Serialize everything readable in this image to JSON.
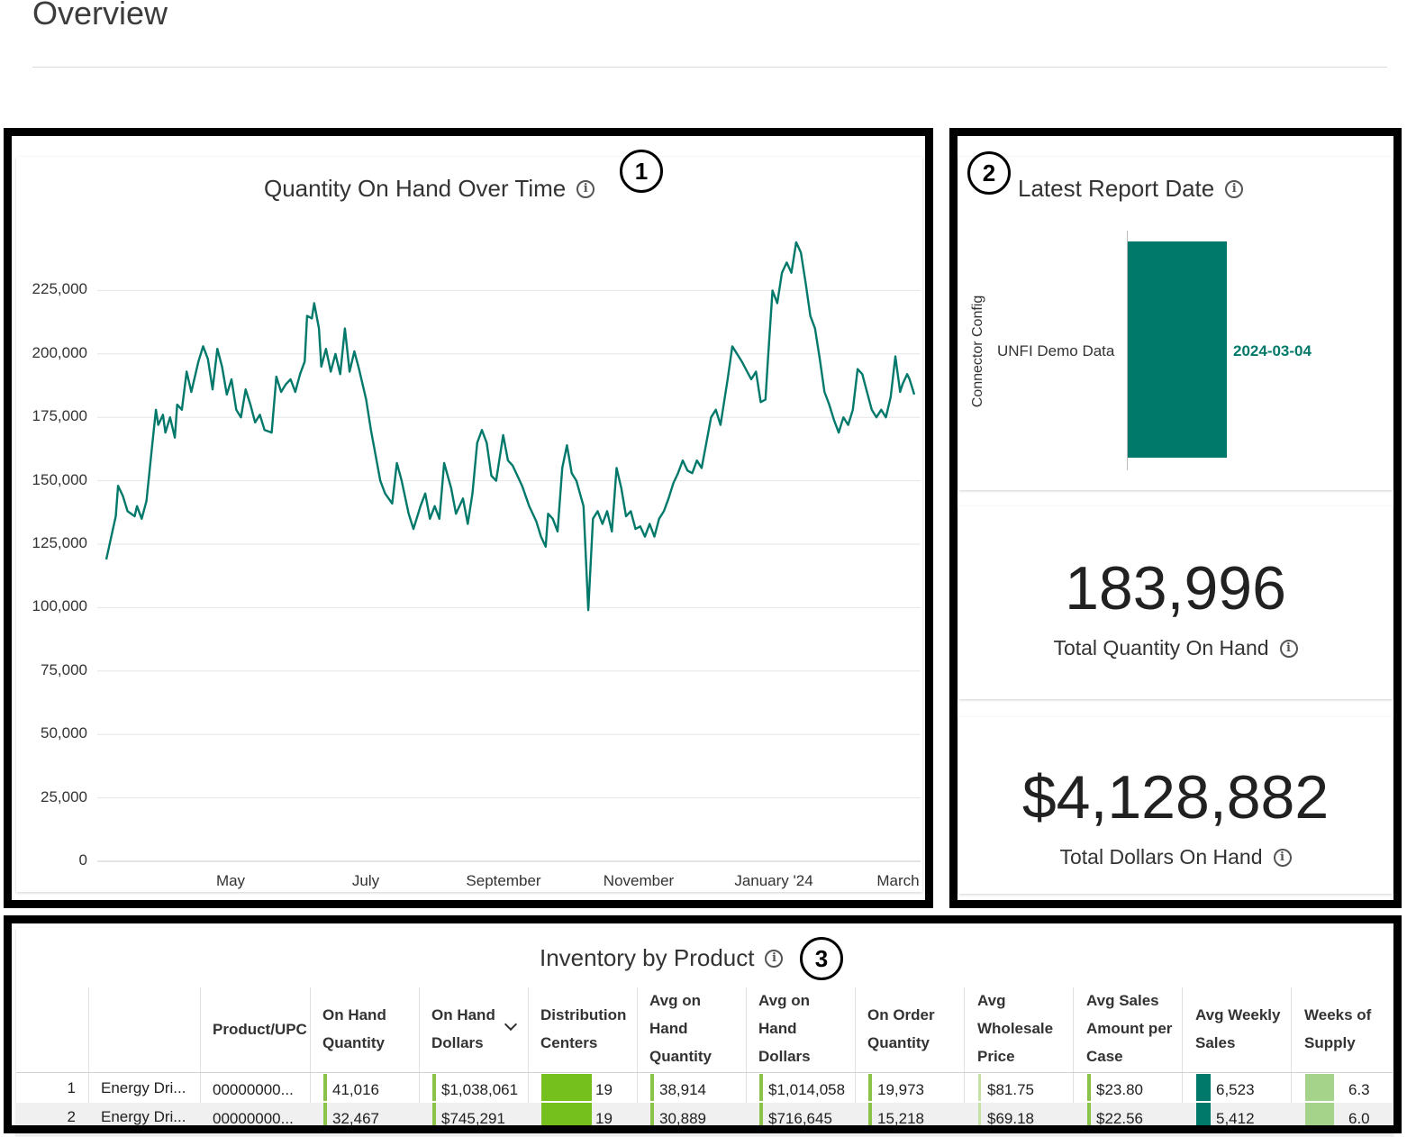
{
  "page": {
    "title": "Overview"
  },
  "annotations": {
    "n1": "1",
    "n2": "2",
    "n3": "3"
  },
  "colors": {
    "teal": "#00796b",
    "bar_green_light": "#8bc34a",
    "bar_green_dark": "#76c01d",
    "bar_teal": "#00796b",
    "bar_pale_green": "#a5d38a"
  },
  "line_card": {
    "title": "Quantity On Hand Over Time",
    "info_icon": "info-icon",
    "chart_data": {
      "type": "line",
      "title": "Quantity On Hand Over Time",
      "xlabel": "",
      "ylabel": "",
      "ylim": [
        0,
        250000
      ],
      "y_ticks": [
        "225,000",
        "200,000",
        "175,000",
        "150,000",
        "125,000",
        "100,000",
        "75,000",
        "50,000",
        "25,000",
        "0"
      ],
      "x_ticks": [
        "May",
        "July",
        "September",
        "November",
        "January '24",
        "March"
      ],
      "x_range": [
        "2023-03-28",
        "2024-03-04"
      ],
      "series": [
        {
          "color": "#00796b",
          "points": [
            [
              "2023-03-28",
              119000
            ],
            [
              "2023-04-01",
              136000
            ],
            [
              "2023-04-02",
              148000
            ],
            [
              "2023-04-04",
              144000
            ],
            [
              "2023-04-06",
              138000
            ],
            [
              "2023-04-09",
              136000
            ],
            [
              "2023-04-10",
              140000
            ],
            [
              "2023-04-12",
              135000
            ],
            [
              "2023-04-14",
              142000
            ],
            [
              "2023-04-16",
              160000
            ],
            [
              "2023-04-18",
              178000
            ],
            [
              "2023-04-19",
              172000
            ],
            [
              "2023-04-21",
              176000
            ],
            [
              "2023-04-22",
              169000
            ],
            [
              "2023-04-24",
              175000
            ],
            [
              "2023-04-26",
              167000
            ],
            [
              "2023-04-27",
              180000
            ],
            [
              "2023-04-29",
              178000
            ],
            [
              "2023-05-01",
              193000
            ],
            [
              "2023-05-03",
              185000
            ],
            [
              "2023-05-06",
              197000
            ],
            [
              "2023-05-08",
              203000
            ],
            [
              "2023-05-10",
              198000
            ],
            [
              "2023-05-12",
              186000
            ],
            [
              "2023-05-14",
              202000
            ],
            [
              "2023-05-16",
              195000
            ],
            [
              "2023-05-18",
              184000
            ],
            [
              "2023-05-20",
              190000
            ],
            [
              "2023-05-22",
              178000
            ],
            [
              "2023-05-24",
              175000
            ],
            [
              "2023-05-26",
              186000
            ],
            [
              "2023-05-28",
              180000
            ],
            [
              "2023-05-30",
              173000
            ],
            [
              "2023-06-01",
              176000
            ],
            [
              "2023-06-03",
              170000
            ],
            [
              "2023-06-06",
              169000
            ],
            [
              "2023-06-08",
              191000
            ],
            [
              "2023-06-10",
              185000
            ],
            [
              "2023-06-12",
              188000
            ],
            [
              "2023-06-14",
              190000
            ],
            [
              "2023-06-16",
              185000
            ],
            [
              "2023-06-18",
              192000
            ],
            [
              "2023-06-20",
              197000
            ],
            [
              "2023-06-21",
              215000
            ],
            [
              "2023-06-23",
              214000
            ],
            [
              "2023-06-24",
              220000
            ],
            [
              "2023-06-26",
              210000
            ],
            [
              "2023-06-27",
              195000
            ],
            [
              "2023-06-29",
              202000
            ],
            [
              "2023-07-01",
              193000
            ],
            [
              "2023-07-03",
              200000
            ],
            [
              "2023-07-05",
              192000
            ],
            [
              "2023-07-07",
              210000
            ],
            [
              "2023-07-09",
              193000
            ],
            [
              "2023-07-11",
              201000
            ],
            [
              "2023-07-13",
              194000
            ],
            [
              "2023-07-16",
              182000
            ],
            [
              "2023-07-18",
              170000
            ],
            [
              "2023-07-20",
              160000
            ],
            [
              "2023-07-22",
              150000
            ],
            [
              "2023-07-24",
              145000
            ],
            [
              "2023-07-27",
              141000
            ],
            [
              "2023-07-29",
              157000
            ],
            [
              "2023-07-31",
              150000
            ],
            [
              "2023-08-03",
              137000
            ],
            [
              "2023-08-05",
              131000
            ],
            [
              "2023-08-08",
              140000
            ],
            [
              "2023-08-10",
              145000
            ],
            [
              "2023-08-12",
              135000
            ],
            [
              "2023-08-14",
              140000
            ],
            [
              "2023-08-16",
              135000
            ],
            [
              "2023-08-18",
              157000
            ],
            [
              "2023-08-21",
              147000
            ],
            [
              "2023-08-23",
              137000
            ],
            [
              "2023-08-26",
              143000
            ],
            [
              "2023-08-28",
              133000
            ],
            [
              "2023-08-30",
              145000
            ],
            [
              "2023-09-01",
              165000
            ],
            [
              "2023-09-03",
              170000
            ],
            [
              "2023-09-05",
              165000
            ],
            [
              "2023-09-07",
              152000
            ],
            [
              "2023-09-09",
              150000
            ],
            [
              "2023-09-12",
              168000
            ],
            [
              "2023-09-14",
              158000
            ],
            [
              "2023-09-16",
              156000
            ],
            [
              "2023-09-18",
              152000
            ],
            [
              "2023-09-20",
              148000
            ],
            [
              "2023-09-23",
              140000
            ],
            [
              "2023-09-26",
              134000
            ],
            [
              "2023-09-28",
              128000
            ],
            [
              "2023-09-30",
              124000
            ],
            [
              "2023-10-01",
              137000
            ],
            [
              "2023-10-03",
              135000
            ],
            [
              "2023-10-05",
              130000
            ],
            [
              "2023-10-07",
              155000
            ],
            [
              "2023-10-09",
              164000
            ],
            [
              "2023-10-11",
              153000
            ],
            [
              "2023-10-13",
              150000
            ],
            [
              "2023-10-16",
              140000
            ],
            [
              "2023-10-18",
              99000
            ],
            [
              "2023-10-20",
              135000
            ],
            [
              "2023-10-22",
              138000
            ],
            [
              "2023-10-24",
              133000
            ],
            [
              "2023-10-26",
              138000
            ],
            [
              "2023-10-28",
              130000
            ],
            [
              "2023-10-30",
              155000
            ],
            [
              "2023-11-01",
              147000
            ],
            [
              "2023-11-03",
              136000
            ],
            [
              "2023-11-05",
              138000
            ],
            [
              "2023-11-07",
              131000
            ],
            [
              "2023-11-09",
              132000
            ],
            [
              "2023-11-11",
              128000
            ],
            [
              "2023-11-13",
              133000
            ],
            [
              "2023-11-15",
              128000
            ],
            [
              "2023-11-17",
              135000
            ],
            [
              "2023-11-19",
              138000
            ],
            [
              "2023-11-21",
              143000
            ],
            [
              "2023-11-23",
              149000
            ],
            [
              "2023-11-25",
              153000
            ],
            [
              "2023-11-27",
              158000
            ],
            [
              "2023-11-29",
              154000
            ],
            [
              "2023-12-01",
              153000
            ],
            [
              "2023-12-03",
              158000
            ],
            [
              "2023-12-05",
              155000
            ],
            [
              "2023-12-07",
              165000
            ],
            [
              "2023-12-09",
              175000
            ],
            [
              "2023-12-11",
              178000
            ],
            [
              "2023-12-13",
              172000
            ],
            [
              "2023-12-16",
              190000
            ],
            [
              "2023-12-18",
              203000
            ],
            [
              "2023-12-22",
              197000
            ],
            [
              "2023-12-26",
              190000
            ],
            [
              "2023-12-28",
              193000
            ],
            [
              "2023-12-30",
              181000
            ],
            [
              "2024-01-01",
              182000
            ],
            [
              "2024-01-02",
              197000
            ],
            [
              "2024-01-04",
              225000
            ],
            [
              "2024-01-06",
              220000
            ],
            [
              "2024-01-08",
              232000
            ],
            [
              "2024-01-10",
              236000
            ],
            [
              "2024-01-12",
              232000
            ],
            [
              "2024-01-14",
              244000
            ],
            [
              "2024-01-16",
              240000
            ],
            [
              "2024-01-18",
              228000
            ],
            [
              "2024-01-20",
              215000
            ],
            [
              "2024-01-22",
              210000
            ],
            [
              "2024-01-24",
              198000
            ],
            [
              "2024-01-26",
              185000
            ],
            [
              "2024-01-28",
              180000
            ],
            [
              "2024-01-30",
              174000
            ],
            [
              "2024-02-01",
              169000
            ],
            [
              "2024-02-03",
              175000
            ],
            [
              "2024-02-05",
              172000
            ],
            [
              "2024-02-07",
              178000
            ],
            [
              "2024-02-09",
              194000
            ],
            [
              "2024-02-11",
              192000
            ],
            [
              "2024-02-13",
              185000
            ],
            [
              "2024-02-15",
              178000
            ],
            [
              "2024-02-17",
              175000
            ],
            [
              "2024-02-19",
              178000
            ],
            [
              "2024-02-21",
              175000
            ],
            [
              "2024-02-23",
              183000
            ],
            [
              "2024-02-25",
              199000
            ],
            [
              "2024-02-27",
              185000
            ],
            [
              "2024-02-28",
              188000
            ],
            [
              "2024-03-01",
              192000
            ],
            [
              "2024-03-02",
              190000
            ],
            [
              "2024-03-04",
              184000
            ]
          ]
        }
      ]
    }
  },
  "report_date_card": {
    "title": "Latest Report Date",
    "info_icon": "info-icon",
    "chart_data": {
      "type": "bar",
      "orientation": "horizontal",
      "ylabel": "Connector Config",
      "categories": [
        "UNFI Demo Data"
      ],
      "values": [
        "2024-03-04"
      ],
      "data_labels": [
        "2024-03-04"
      ],
      "color": "#00796b"
    }
  },
  "kpi_quantity": {
    "value": "183,996",
    "label": "Total Quantity On Hand",
    "info_icon": "info-icon"
  },
  "kpi_dollars": {
    "value": "$4,128,882",
    "label": "Total Dollars On Hand",
    "info_icon": "info-icon"
  },
  "table": {
    "title": "Inventory by Product",
    "info_icon": "info-icon",
    "sort_icon": "chevron-down-icon",
    "columns": [
      {
        "key": "product",
        "label": ""
      },
      {
        "key": "upc",
        "label": "Product/UPC"
      },
      {
        "key": "on_hand_qty",
        "label": "On Hand Quantity"
      },
      {
        "key": "on_hand_dollars",
        "label": "On Hand Dollars"
      },
      {
        "key": "dc",
        "label": "Distribution Centers"
      },
      {
        "key": "avg_on_hand_qty",
        "label": "Avg on Hand Quantity"
      },
      {
        "key": "avg_on_hand_dollars",
        "label": "Avg on Hand Dollars"
      },
      {
        "key": "on_order_qty",
        "label": "On Order Quantity"
      },
      {
        "key": "avg_wholesale",
        "label": "Avg Wholesale Price"
      },
      {
        "key": "avg_sales_case",
        "label": "Avg Sales Amount per Case"
      },
      {
        "key": "avg_weekly_sales",
        "label": "Avg Weekly Sales"
      },
      {
        "key": "weeks_supply",
        "label": "Weeks of Supply"
      }
    ],
    "rows": [
      {
        "num": "1",
        "product": "Energy Dri...",
        "upc": "00000000...",
        "on_hand_qty": "41,016",
        "on_hand_dollars": "$1,038,061",
        "dc": "19",
        "avg_on_hand_qty": "38,914",
        "avg_on_hand_dollars": "$1,014,058",
        "on_order_qty": "19,973",
        "avg_wholesale": "$81.75",
        "avg_sales_case": "$23.80",
        "avg_weekly_sales": "6,523",
        "weeks_supply": "6.3"
      },
      {
        "num": "2",
        "product": "Energy Dri...",
        "upc": "00000000...",
        "on_hand_qty": "32,467",
        "on_hand_dollars": "$745,291",
        "dc": "19",
        "avg_on_hand_qty": "30,889",
        "avg_on_hand_dollars": "$716,645",
        "on_order_qty": "15,218",
        "avg_wholesale": "$69.18",
        "avg_sales_case": "$22.56",
        "avg_weekly_sales": "5,412",
        "weeks_supply": "6.0"
      }
    ]
  }
}
